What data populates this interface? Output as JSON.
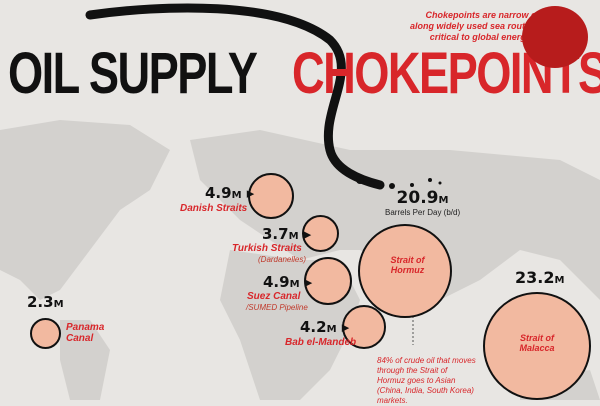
{
  "title": {
    "part1": "OIL SUPPLY",
    "part2": "CHOKEPOINTS"
  },
  "description": "Chokepoints are narrow channels along widely used sea routes that are critical to global energy security.",
  "total": {
    "value": "20.9",
    "unit": "M",
    "label": "Barrels Per Day (b/d)"
  },
  "chokepoints": [
    {
      "value": "4.9",
      "unit": "M",
      "name": "Danish Straits"
    },
    {
      "value": "3.7",
      "unit": "M",
      "name": "Turkish Straits",
      "sub": "(Dardanelles)"
    },
    {
      "value": "4.9",
      "unit": "M",
      "name": "Suez Canal",
      "sub": "/SUMED Pipeline"
    },
    {
      "value": "4.2",
      "unit": "M",
      "name": "Bab el-Mandeb"
    },
    {
      "value": "2.3",
      "unit": "M",
      "name": "Panama Canal"
    },
    {
      "name": "Strait of Hormuz"
    },
    {
      "value": "23.2",
      "unit": "M",
      "name": "Strait of Malacca"
    }
  ],
  "footnote": "84% of crude oil that moves through the Strait of Hormuz goes to Asian (China, India, South Korea) markets.",
  "colors": {
    "accent": "#d8262a",
    "circle_fill": "#f2b9a0",
    "background": "#e8e6e3",
    "land": "#d3d1ce"
  }
}
